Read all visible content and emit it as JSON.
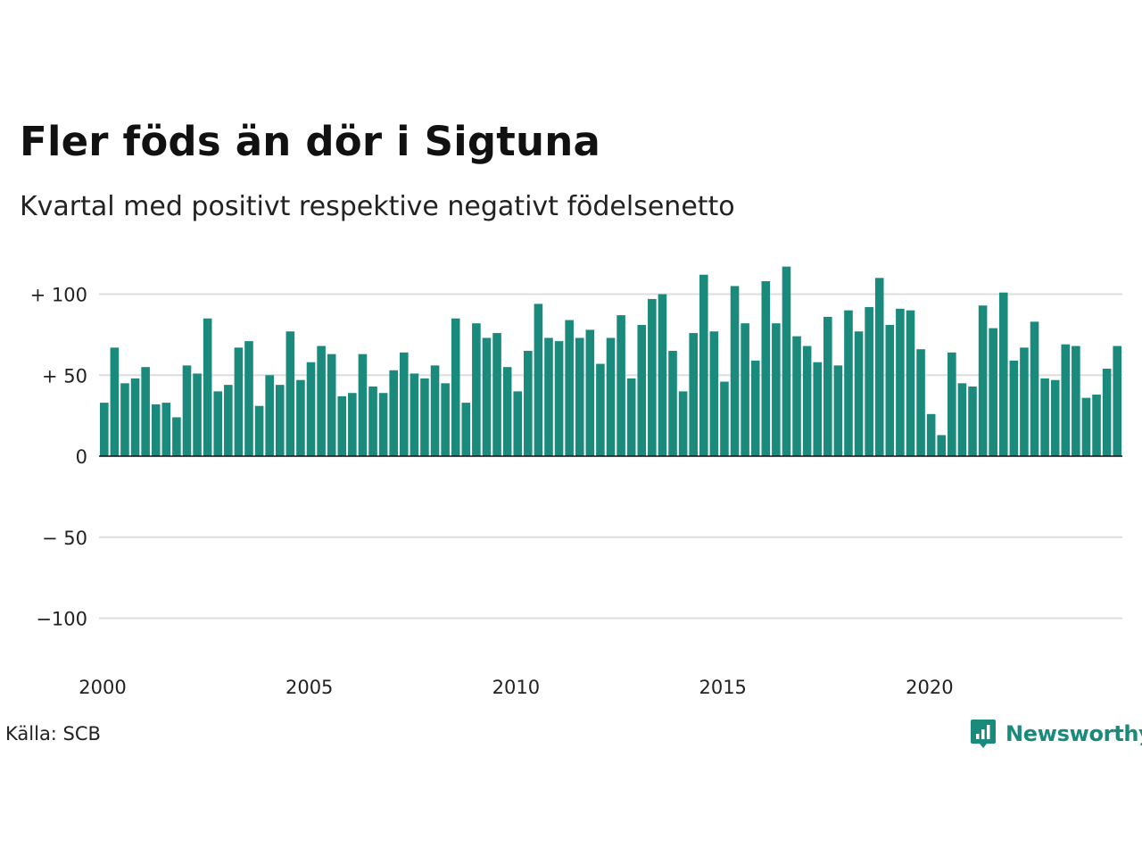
{
  "title": "Fler föds än dör i Sigtuna",
  "subtitle": "Kvartal med positivt respektive negativt födelsenetto",
  "source": "Källa: SCB",
  "brand": "Newsworthy",
  "colors": {
    "bar": "#1a8a7c",
    "grid": "#dddddd",
    "zero_line": "#111111",
    "brand": "#1a8a7c"
  },
  "chart_data": {
    "type": "bar",
    "x_start": "2000 Q1",
    "frequency": "quarterly",
    "values": [
      33,
      67,
      45,
      48,
      55,
      32,
      33,
      24,
      56,
      51,
      85,
      40,
      44,
      67,
      71,
      31,
      50,
      44,
      77,
      47,
      58,
      68,
      63,
      37,
      39,
      63,
      43,
      39,
      53,
      64,
      51,
      48,
      56,
      45,
      85,
      33,
      82,
      73,
      76,
      55,
      40,
      65,
      94,
      73,
      71,
      84,
      73,
      78,
      57,
      73,
      87,
      48,
      81,
      97,
      100,
      65,
      40,
      76,
      112,
      77,
      46,
      105,
      82,
      59,
      108,
      82,
      117,
      74,
      68,
      58,
      86,
      56,
      90,
      77,
      92,
      110,
      81,
      91,
      90,
      66,
      26,
      13,
      64,
      45,
      43,
      93,
      79,
      101,
      59,
      67,
      83,
      48,
      47,
      69,
      68,
      36,
      38,
      54,
      68
    ],
    "ylim": [
      -120,
      120
    ],
    "y_ticks": [
      100,
      50,
      0,
      -50,
      -100
    ],
    "y_tick_labels": [
      "+ 100",
      "+  50",
      "0",
      "− 50",
      "−100"
    ],
    "x_tick_labels": [
      "2000",
      "2005",
      "2010",
      "2015",
      "2020"
    ],
    "grid": true,
    "legend": "none"
  }
}
